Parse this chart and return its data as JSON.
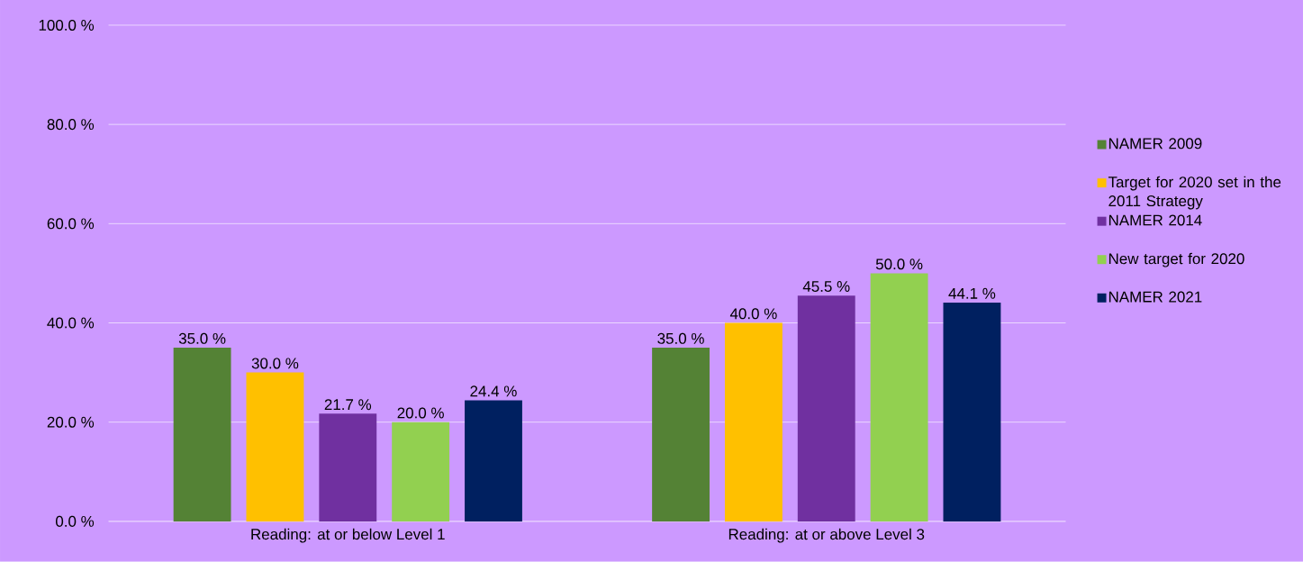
{
  "chart_data": {
    "type": "bar",
    "categories": [
      "Reading: at or below Level 1",
      "Reading: at or above Level 3"
    ],
    "series": [
      {
        "name": "NAMER 2009",
        "color": "#548235",
        "values": [
          35.0,
          35.0
        ],
        "value_labels": [
          "35.0 %",
          "35.0 %"
        ]
      },
      {
        "name": "Target for 2020 set in the 2011 Strategy",
        "color": "#ffc000",
        "values": [
          30.0,
          40.0
        ],
        "value_labels": [
          "30.0 %",
          "40.0 %"
        ]
      },
      {
        "name": "NAMER 2014",
        "color": "#7030a0",
        "values": [
          21.7,
          45.5
        ],
        "value_labels": [
          "21.7 %",
          "45.5 %"
        ]
      },
      {
        "name": "New target for 2020",
        "color": "#92d050",
        "values": [
          20.0,
          50.0
        ],
        "value_labels": [
          "20.0 %",
          "50.0 %"
        ]
      },
      {
        "name": "NAMER 2021",
        "color": "#002060",
        "values": [
          24.4,
          44.1
        ],
        "value_labels": [
          "24.4 %",
          "44.1 %"
        ]
      }
    ],
    "ylim": [
      0,
      100
    ],
    "yticks": [
      {
        "value": 0,
        "label": "0.0 %"
      },
      {
        "value": 20,
        "label": "20.0 %"
      },
      {
        "value": 40,
        "label": "40.0 %"
      },
      {
        "value": 60,
        "label": "60.0 %"
      },
      {
        "value": 80,
        "label": "80.0 %"
      },
      {
        "value": 100,
        "label": "100.0 %"
      }
    ],
    "grid": "y",
    "legend": "right"
  }
}
